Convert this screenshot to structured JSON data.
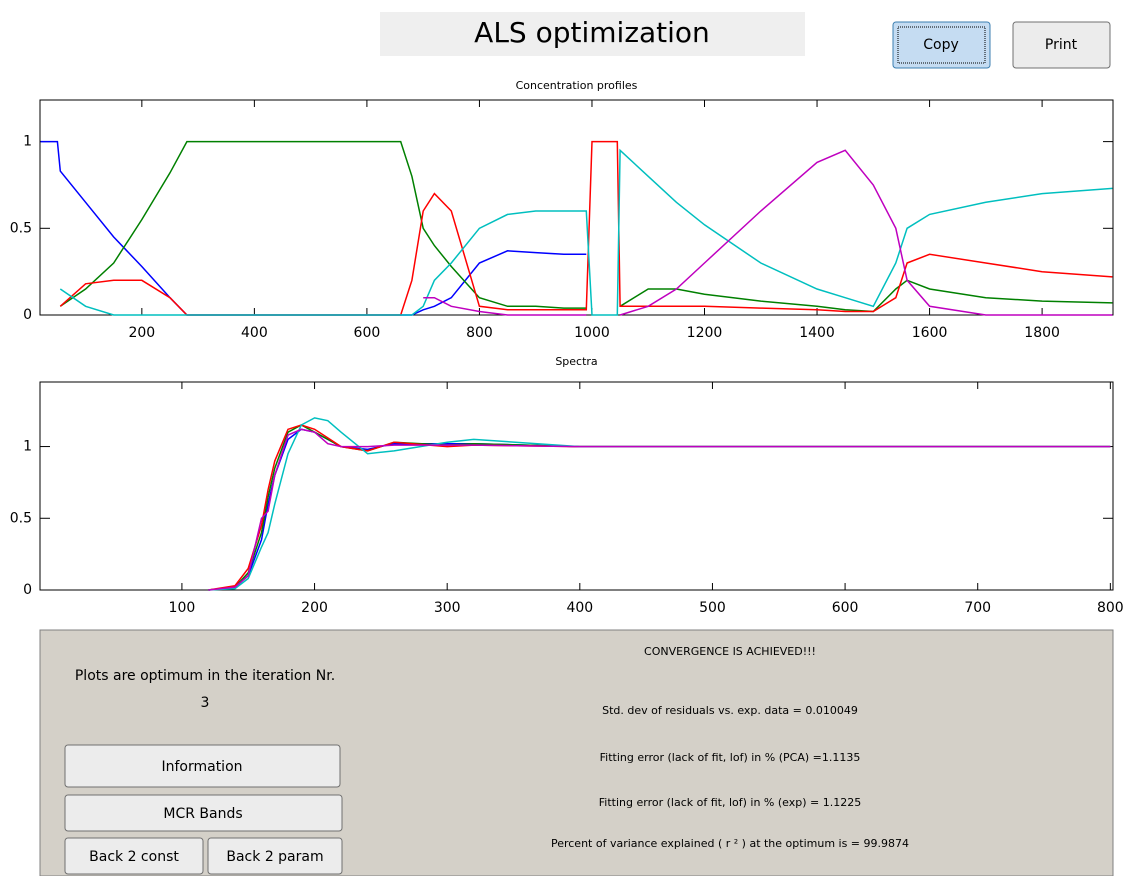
{
  "header": {
    "title": "ALS optimization",
    "buttons": [
      "Copy",
      "Print"
    ]
  },
  "chart_data": [
    {
      "type": "line",
      "title": "Concentration profiles",
      "x_label": "Spectra",
      "x": [
        20,
        50,
        55,
        100,
        150,
        200,
        250,
        280,
        300,
        400,
        500,
        600,
        660,
        680,
        700,
        720,
        750,
        800,
        850,
        900,
        950,
        990,
        1000,
        1045,
        1050,
        1100,
        1150,
        1200,
        1300,
        1400,
        1450,
        1500,
        1540,
        1560,
        1600,
        1700,
        1800,
        1925
      ],
      "xlim": [
        19,
        1926
      ],
      "xticks": [
        200,
        400,
        600,
        800,
        1000,
        1200,
        1400,
        1600,
        1800
      ],
      "ylim": [
        0,
        1.24
      ],
      "yticks": [
        0,
        0.5,
        1
      ],
      "grid": false,
      "series": [
        {
          "color": "#0000ff",
          "values": [
            1,
            1,
            0.83,
            0.65,
            0.45,
            0.28,
            0.1,
            0,
            0,
            0,
            0,
            0,
            0,
            0,
            0.03,
            0.05,
            0.1,
            0.3,
            0.37,
            0.36,
            0.35,
            0.35,
            null,
            null,
            null,
            null,
            null,
            null,
            null,
            null,
            null,
            null,
            null,
            null,
            null,
            null,
            null,
            null
          ]
        },
        {
          "color": "#008000",
          "values": [
            null,
            null,
            0.05,
            0.15,
            0.3,
            0.55,
            0.82,
            1,
            1,
            1,
            1,
            1,
            1,
            0.8,
            0.5,
            0.4,
            0.28,
            0.1,
            0.05,
            0.05,
            0.04,
            0.04,
            null,
            null,
            0.05,
            0.15,
            0.15,
            0.12,
            0.08,
            0.05,
            0.03,
            0.02,
            0.15,
            0.2,
            0.15,
            0.1,
            0.08,
            0.07
          ]
        },
        {
          "color": "#ff0000",
          "values": [
            null,
            null,
            0.05,
            0.18,
            0.2,
            0.2,
            0.1,
            0,
            0,
            0,
            0,
            0,
            0,
            0.2,
            0.6,
            0.7,
            0.6,
            0.05,
            0.03,
            0.03,
            0.03,
            0.03,
            1,
            1,
            0.05,
            0.05,
            0.05,
            0.05,
            0.04,
            0.03,
            0.02,
            0.02,
            0.1,
            0.3,
            0.35,
            0.3,
            0.25,
            0.22
          ]
        },
        {
          "color": "#00bfbf",
          "values": [
            null,
            null,
            0.15,
            0.05,
            0,
            0,
            0,
            0,
            0,
            0,
            0,
            0,
            0,
            0,
            0.05,
            0.2,
            0.3,
            0.5,
            0.58,
            0.6,
            0.6,
            0.6,
            0,
            0,
            0.95,
            0.8,
            0.65,
            0.52,
            0.3,
            0.15,
            0.1,
            0.05,
            0.3,
            0.5,
            0.58,
            0.65,
            0.7,
            0.73
          ]
        },
        {
          "color": "#bf00bf",
          "values": [
            null,
            null,
            null,
            null,
            null,
            null,
            null,
            null,
            null,
            null,
            null,
            null,
            null,
            null,
            0.1,
            0.1,
            0.05,
            0.02,
            0,
            0,
            0,
            0,
            null,
            null,
            0,
            0.05,
            0.15,
            0.3,
            0.6,
            0.88,
            0.95,
            0.75,
            0.5,
            0.2,
            0.05,
            0,
            0,
            0
          ]
        }
      ]
    },
    {
      "type": "line",
      "x": [
        120,
        140,
        150,
        160,
        165,
        170,
        180,
        190,
        200,
        210,
        220,
        240,
        260,
        300,
        320,
        400,
        500,
        800
      ],
      "xlim": [
        -7,
        802
      ],
      "xticks": [
        100,
        200,
        300,
        400,
        500,
        600,
        700,
        800
      ],
      "ylim": [
        0,
        1.45
      ],
      "yticks": [
        0,
        0.5,
        1
      ],
      "grid": false,
      "series": [
        {
          "color": "#0000ff",
          "values": [
            0,
            0.02,
            0.1,
            0.35,
            0.6,
            0.8,
            1.05,
            1.12,
            1.1,
            1.05,
            1.0,
            0.98,
            1.02,
            1.02,
            1.02,
            1,
            1,
            1
          ]
        },
        {
          "color": "#008000",
          "values": [
            0,
            0.02,
            0.12,
            0.4,
            0.65,
            0.85,
            1.1,
            1.15,
            1.1,
            1.05,
            1.0,
            0.97,
            1.03,
            1.01,
            1.02,
            1,
            1,
            1
          ]
        },
        {
          "color": "#ff0000",
          "values": [
            0,
            0.03,
            0.15,
            0.45,
            0.7,
            0.9,
            1.12,
            1.15,
            1.12,
            1.06,
            1.0,
            0.97,
            1.03,
            1.0,
            1.01,
            1,
            1,
            1
          ]
        },
        {
          "color": "#00bfbf",
          "values": [
            0,
            0.01,
            0.08,
            0.3,
            0.4,
            0.6,
            0.95,
            1.15,
            1.2,
            1.18,
            1.1,
            0.95,
            0.97,
            1.03,
            1.05,
            1,
            1,
            1
          ]
        },
        {
          "color": "#bf00bf",
          "values": [
            0,
            0.02,
            0.1,
            0.5,
            0.55,
            0.8,
            1.08,
            1.12,
            1.1,
            1.02,
            1.0,
            1.0,
            1.01,
            1.01,
            1.01,
            1,
            1,
            1
          ]
        }
      ]
    }
  ],
  "panel": {
    "iteration_text": "Plots are optimum in the iteration Nr.",
    "iteration": "3",
    "buttons": [
      "Information",
      "MCR Bands",
      "Back 2 const",
      "Back 2 param"
    ],
    "status": "CONVERGENCE IS ACHIEVED!!!",
    "stats": [
      "Std. dev of residuals vs. exp. data = 0.010049",
      "Fitting error (lack of fit, lof) in % (PCA) =1.1135",
      "Fitting error (lack of fit, lof) in % (exp) = 1.1225",
      "Percent of variance explained ( r ² ) at the optimum is = 99.9874"
    ]
  }
}
